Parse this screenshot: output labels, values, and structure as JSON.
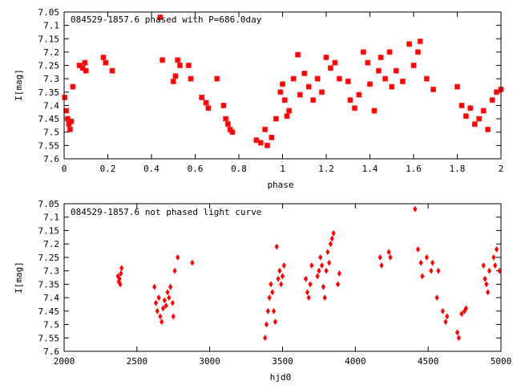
{
  "chart_data": [
    {
      "type": "scatter",
      "title": "084529-1857.6 phased with P=686.0day",
      "xlabel": "phase",
      "ylabel": "I[mag]",
      "xlim": [
        0,
        2
      ],
      "ylim": [
        7.6,
        7.05
      ],
      "y_inverted": true,
      "xticks": [
        0,
        0.2,
        0.4,
        0.6,
        0.8,
        1,
        1.2,
        1.4,
        1.6,
        1.8,
        2
      ],
      "xtick_labels": [
        "0",
        "0.2",
        "0.4",
        "0.6",
        "0.8",
        "1",
        "1.2",
        "1.4",
        "1.6",
        "1.8",
        "2"
      ],
      "yticks": [
        7.05,
        7.1,
        7.15,
        7.2,
        7.25,
        7.3,
        7.35,
        7.4,
        7.45,
        7.5,
        7.55,
        7.6
      ],
      "ytick_labels": [
        "7.05",
        "7.1",
        "7.15",
        "7.2",
        "7.25",
        "7.3",
        "7.35",
        "7.4",
        "7.45",
        "7.5",
        "7.55",
        "7.6"
      ],
      "marker_color": "#ff0000",
      "marker": "cross",
      "grid": false,
      "x": [
        0.003,
        0.01,
        0.016,
        0.022,
        0.027,
        0.033,
        0.04,
        0.07,
        0.085,
        0.095,
        0.1,
        0.18,
        0.19,
        0.22,
        0.44,
        0.45,
        0.5,
        0.51,
        0.52,
        0.53,
        0.57,
        0.58,
        0.63,
        0.65,
        0.66,
        0.7,
        0.73,
        0.74,
        0.75,
        0.76,
        0.77,
        0.88,
        0.9,
        0.92,
        0.93,
        0.95,
        0.97,
        0.99,
        1.0,
        1.01,
        1.02,
        1.03,
        1.05,
        1.07,
        1.08,
        1.1,
        1.12,
        1.14,
        1.16,
        1.18,
        1.2,
        1.22,
        1.24,
        1.26,
        1.3,
        1.31,
        1.33,
        1.35,
        1.37,
        1.39,
        1.4,
        1.42,
        1.44,
        1.45,
        1.47,
        1.49,
        1.5,
        1.52,
        1.55,
        1.58,
        1.6,
        1.62,
        1.63,
        1.66,
        1.69,
        1.8,
        1.82,
        1.84,
        1.86,
        1.88,
        1.9,
        1.92,
        1.94,
        1.96,
        1.98,
        2.0
      ],
      "y": [
        7.37,
        7.42,
        7.45,
        7.47,
        7.49,
        7.46,
        7.33,
        7.25,
        7.26,
        7.24,
        7.27,
        7.22,
        7.24,
        7.27,
        7.07,
        7.23,
        7.31,
        7.29,
        7.23,
        7.25,
        7.25,
        7.3,
        7.37,
        7.39,
        7.41,
        7.3,
        7.4,
        7.45,
        7.47,
        7.49,
        7.5,
        7.53,
        7.54,
        7.49,
        7.55,
        7.52,
        7.45,
        7.35,
        7.32,
        7.38,
        7.44,
        7.42,
        7.3,
        7.21,
        7.36,
        7.28,
        7.33,
        7.38,
        7.3,
        7.35,
        7.22,
        7.26,
        7.24,
        7.3,
        7.31,
        7.38,
        7.41,
        7.36,
        7.2,
        7.24,
        7.32,
        7.42,
        7.27,
        7.22,
        7.3,
        7.2,
        7.33,
        7.27,
        7.31,
        7.17,
        7.25,
        7.2,
        7.16,
        7.3,
        7.34,
        7.33,
        7.4,
        7.44,
        7.41,
        7.47,
        7.45,
        7.42,
        7.49,
        7.38,
        7.35,
        7.34
      ]
    },
    {
      "type": "scatter",
      "title": "084529-1857.6 not phased light curve",
      "xlabel": "hjd0",
      "ylabel": "I[mag]",
      "xlim": [
        2000,
        5000
      ],
      "ylim": [
        7.6,
        7.05
      ],
      "y_inverted": true,
      "xticks": [
        2000,
        2500,
        3000,
        3500,
        4000,
        4500,
        5000
      ],
      "xtick_labels": [
        "2000",
        "2500",
        "3000",
        "3500",
        "4000",
        "4500",
        "5000"
      ],
      "yticks": [
        7.05,
        7.1,
        7.15,
        7.2,
        7.25,
        7.3,
        7.35,
        7.4,
        7.45,
        7.5,
        7.55,
        7.6
      ],
      "ytick_labels": [
        "7.05",
        "7.1",
        "7.15",
        "7.2",
        "7.25",
        "7.3",
        "7.35",
        "7.4",
        "7.45",
        "7.5",
        "7.55",
        "7.6"
      ],
      "marker_color": "#ff0000",
      "marker": "diamond",
      "grid": false,
      "x": [
        2370,
        2375,
        2380,
        2385,
        2390,
        2395,
        2620,
        2630,
        2640,
        2650,
        2660,
        2670,
        2680,
        2690,
        2700,
        2710,
        2720,
        2730,
        2745,
        2750,
        2760,
        2780,
        2880,
        3380,
        3390,
        3400,
        3410,
        3420,
        3430,
        3440,
        3450,
        3460,
        3470,
        3480,
        3490,
        3500,
        3510,
        3660,
        3670,
        3680,
        3690,
        3700,
        3740,
        3750,
        3760,
        3770,
        3780,
        3790,
        3800,
        3810,
        3820,
        3830,
        3840,
        3850,
        3880,
        3890,
        4170,
        4180,
        4230,
        4240,
        4410,
        4430,
        4450,
        4460,
        4490,
        4520,
        4530,
        4560,
        4570,
        4600,
        4620,
        4630,
        4700,
        4710,
        4730,
        4750,
        4760,
        4880,
        4890,
        4900,
        4910,
        4920,
        4950,
        4960,
        4970,
        4990
      ],
      "y": [
        7.32,
        7.34,
        7.33,
        7.35,
        7.31,
        7.29,
        7.36,
        7.42,
        7.45,
        7.4,
        7.47,
        7.49,
        7.44,
        7.41,
        7.43,
        7.38,
        7.4,
        7.36,
        7.42,
        7.47,
        7.3,
        7.25,
        7.27,
        7.55,
        7.5,
        7.45,
        7.4,
        7.35,
        7.38,
        7.45,
        7.49,
        7.21,
        7.33,
        7.3,
        7.35,
        7.32,
        7.28,
        7.33,
        7.38,
        7.4,
        7.35,
        7.28,
        7.32,
        7.3,
        7.25,
        7.28,
        7.36,
        7.4,
        7.3,
        7.23,
        7.27,
        7.2,
        7.18,
        7.16,
        7.35,
        7.31,
        7.25,
        7.28,
        7.23,
        7.25,
        7.07,
        7.22,
        7.27,
        7.32,
        7.25,
        7.3,
        7.27,
        7.4,
        7.3,
        7.45,
        7.49,
        7.47,
        7.53,
        7.55,
        7.46,
        7.45,
        7.44,
        7.28,
        7.33,
        7.35,
        7.38,
        7.3,
        7.25,
        7.28,
        7.22,
        7.3
      ]
    }
  ]
}
